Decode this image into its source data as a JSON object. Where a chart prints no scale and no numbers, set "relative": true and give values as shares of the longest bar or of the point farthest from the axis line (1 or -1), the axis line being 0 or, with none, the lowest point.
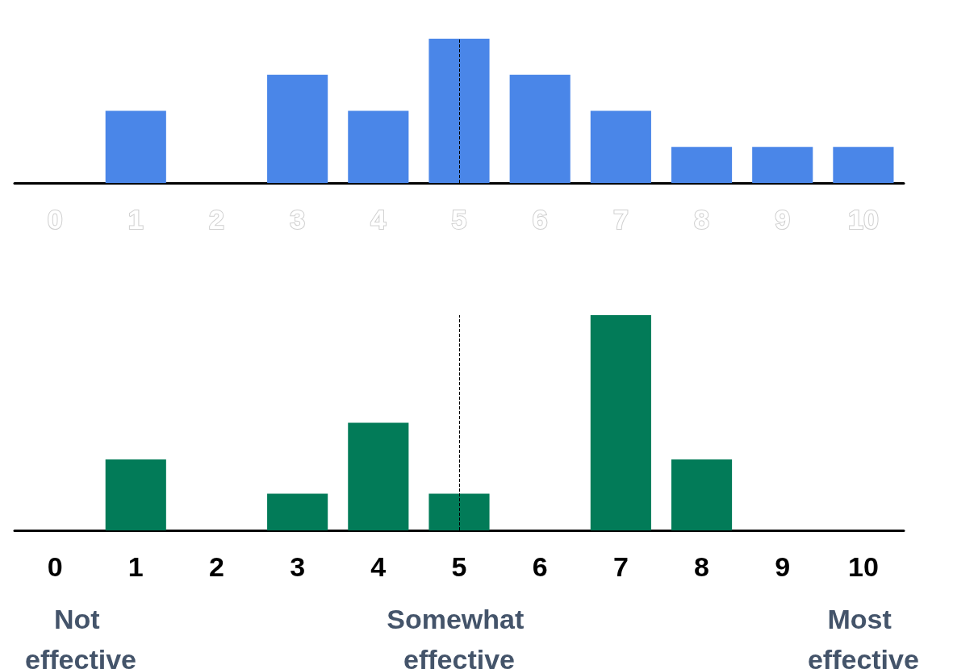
{
  "chart_data": [
    {
      "type": "bar",
      "relative": true,
      "categories": [
        "0",
        "1",
        "2",
        "3",
        "4",
        "5",
        "6",
        "7",
        "8",
        "9",
        "10"
      ],
      "values": [
        0,
        0.5,
        0,
        0.75,
        0.5,
        1,
        0.75,
        0.5,
        0.25,
        0.25,
        0.25
      ],
      "color": "#4a86e8",
      "tick_labels": "x",
      "grid": false,
      "ref_lines": [
        {
          "axis": "x",
          "value": "5",
          "line_style": "dashed",
          "color": "#000000"
        }
      ]
    },
    {
      "type": "bar",
      "relative": true,
      "categories": [
        "0",
        "1",
        "2",
        "3",
        "4",
        "5",
        "6",
        "7",
        "8",
        "9",
        "10"
      ],
      "values": [
        0,
        0.33,
        0,
        0.17,
        0.5,
        0.17,
        0,
        1,
        0.33,
        0,
        0
      ],
      "color": "#027b58",
      "tick_labels": "x",
      "grid": false,
      "ref_lines": [
        {
          "axis": "x",
          "value": "5",
          "line_style": "dashed",
          "color": "#000000"
        }
      ],
      "annotations": [
        "Not effective",
        "Somewhat effective",
        "Most effective"
      ]
    }
  ]
}
